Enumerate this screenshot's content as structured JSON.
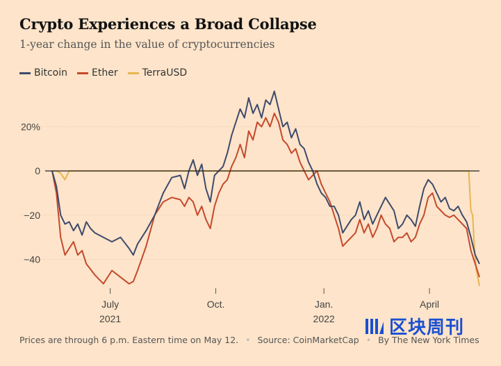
{
  "chart_data": {
    "type": "line",
    "title": "Crypto Experiences a Broad Collapse",
    "subtitle": "1-year change in the value of cryptocurrencies",
    "ylabel": "",
    "xlabel": "",
    "ylim": [
      -53,
      38
    ],
    "xlim": [
      0,
      100
    ],
    "y_ticks": [
      {
        "value": 20,
        "label": "20%"
      },
      {
        "value": 0,
        "label": "0"
      },
      {
        "value": -20,
        "label": "−20"
      },
      {
        "value": -40,
        "label": "−40"
      }
    ],
    "x_ticks": [
      {
        "value": 13.6,
        "label": "July",
        "sub": "2021"
      },
      {
        "value": 38.3,
        "label": "Oct.",
        "sub": ""
      },
      {
        "value": 63.6,
        "label": "Jan.",
        "sub": "2022"
      },
      {
        "value": 88.3,
        "label": "April",
        "sub": ""
      }
    ],
    "series": [
      {
        "name": "Bitcoin",
        "color": "#3d4a6b",
        "x": [
          0,
          1,
          2,
          3,
          4,
          5,
          6,
          7,
          8,
          9,
          10,
          12,
          14,
          16,
          18,
          19,
          20,
          22,
          24,
          26,
          28,
          30,
          31,
          32,
          33,
          34,
          35,
          36,
          37,
          38,
          39,
          40,
          41,
          42,
          43,
          44,
          45,
          46,
          47,
          48,
          49,
          50,
          51,
          52,
          53,
          54,
          55,
          56,
          57,
          58,
          59,
          60,
          61,
          62,
          63,
          64,
          65,
          66,
          67,
          68,
          69,
          70,
          71,
          72,
          73,
          74,
          75,
          76,
          77,
          78,
          79,
          80,
          81,
          82,
          83,
          84,
          85,
          86,
          87,
          88,
          89,
          90,
          91,
          92,
          93,
          94,
          95,
          96,
          97,
          98,
          99,
          100
        ],
        "values": [
          0,
          -7,
          -20,
          -24,
          -23,
          -27,
          -24,
          -29,
          -23,
          -26,
          -28,
          -30,
          -32,
          -30,
          -35,
          -38,
          -33,
          -27,
          -20,
          -10,
          -3,
          -2,
          -8,
          0,
          5,
          -2,
          3,
          -8,
          -14,
          -2,
          0,
          2,
          8,
          16,
          22,
          28,
          24,
          33,
          26,
          30,
          24,
          32,
          30,
          36,
          28,
          20,
          22,
          15,
          19,
          12,
          10,
          4,
          0,
          -6,
          -10,
          -12,
          -16,
          -16,
          -20,
          -28,
          -25,
          -22,
          -20,
          -14,
          -22,
          -18,
          -24,
          -20,
          -16,
          -12,
          -15,
          -18,
          -26,
          -24,
          -20,
          -22,
          -25,
          -16,
          -8,
          -4,
          -6,
          -10,
          -14,
          -12,
          -17,
          -18,
          -16,
          -20,
          -23,
          -30,
          -38,
          -42
        ]
      },
      {
        "name": "Ether",
        "color": "#c4492c",
        "x": [
          0,
          1,
          2,
          3,
          4,
          5,
          6,
          7,
          8,
          10,
          12,
          14,
          16,
          18,
          19,
          20,
          22,
          24,
          26,
          28,
          30,
          31,
          32,
          33,
          34,
          35,
          36,
          37,
          38,
          39,
          40,
          41,
          42,
          43,
          44,
          45,
          46,
          47,
          48,
          49,
          50,
          51,
          52,
          53,
          54,
          55,
          56,
          57,
          58,
          59,
          60,
          61,
          62,
          63,
          64,
          65,
          66,
          67,
          68,
          69,
          70,
          71,
          72,
          73,
          74,
          75,
          76,
          77,
          78,
          79,
          80,
          81,
          82,
          83,
          84,
          85,
          86,
          87,
          88,
          89,
          90,
          91,
          92,
          93,
          94,
          95,
          96,
          97,
          98,
          99,
          100
        ],
        "values": [
          0,
          -10,
          -30,
          -38,
          -35,
          -32,
          -38,
          -36,
          -42,
          -47,
          -51,
          -45,
          -48,
          -51,
          -50,
          -45,
          -34,
          -20,
          -14,
          -12,
          -13,
          -16,
          -12,
          -14,
          -20,
          -16,
          -22,
          -26,
          -16,
          -10,
          -6,
          -4,
          2,
          6,
          12,
          6,
          18,
          14,
          22,
          20,
          24,
          20,
          26,
          22,
          14,
          12,
          8,
          10,
          4,
          0,
          -4,
          -2,
          0,
          -6,
          -10,
          -14,
          -20,
          -26,
          -34,
          -32,
          -30,
          -28,
          -22,
          -28,
          -24,
          -30,
          -26,
          -20,
          -24,
          -26,
          -32,
          -30,
          -30,
          -28,
          -32,
          -30,
          -24,
          -20,
          -12,
          -10,
          -16,
          -18,
          -20,
          -21,
          -20,
          -22,
          -24,
          -26,
          -36,
          -42,
          -48
        ]
      },
      {
        "name": "TerraUSD",
        "color": "#e6b550",
        "x": [
          0,
          1,
          2,
          3,
          4,
          5,
          20,
          40,
          50,
          55,
          60,
          70,
          80,
          90,
          95,
          97.5,
          98,
          98.4,
          98.8,
          99.2,
          100
        ],
        "values": [
          0,
          0,
          -1,
          -4,
          0,
          0,
          0,
          0,
          0,
          0,
          0,
          0,
          0,
          0,
          0,
          0,
          -18,
          -20,
          -34,
          -44,
          -52
        ]
      }
    ]
  },
  "footer": {
    "note": "Prices are through 6 p.m. Eastern time on May 12.",
    "source": "Source: CoinMarketCap",
    "byline": "By The New York Times"
  },
  "watermark": {
    "text": "区块周刊"
  }
}
